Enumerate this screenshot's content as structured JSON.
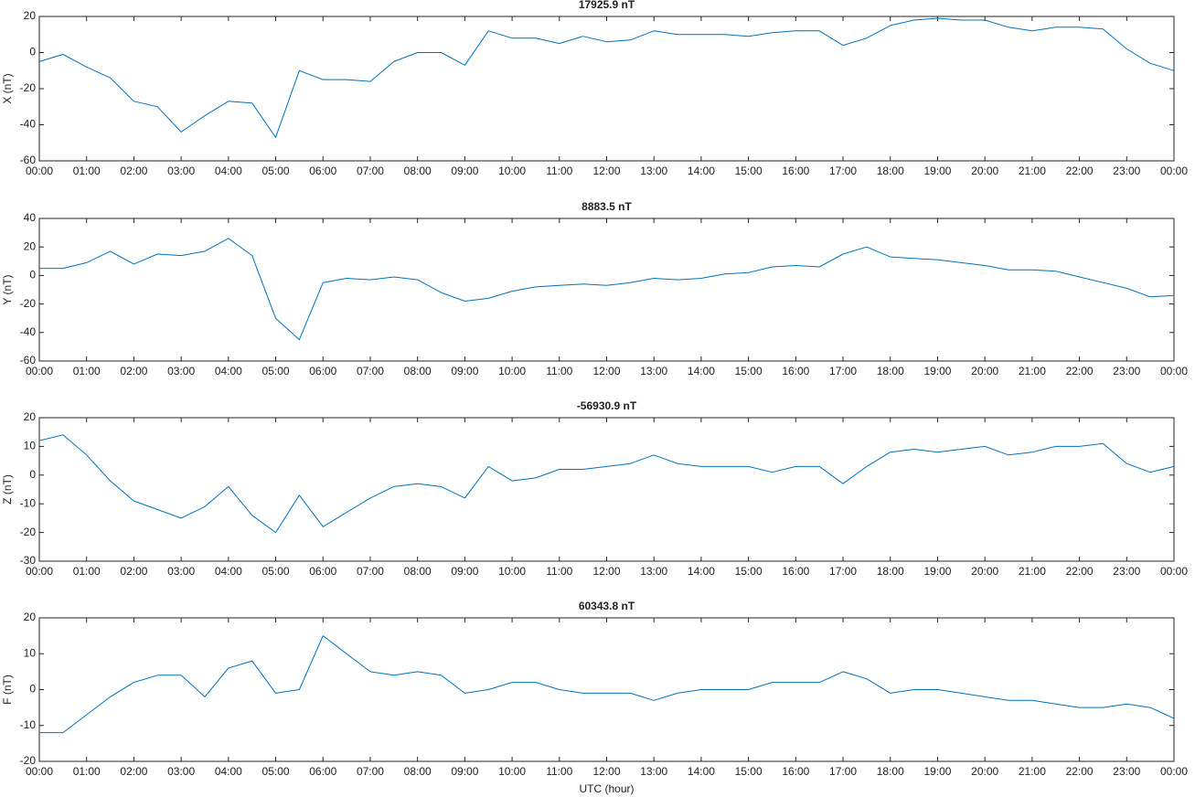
{
  "chart_data": [
    {
      "type": "line",
      "title": "17925.9 nT",
      "ylabel": "X (nT)",
      "x": [
        0,
        0.5,
        1,
        1.5,
        2,
        2.5,
        3,
        3.5,
        4,
        4.5,
        5,
        5.5,
        6,
        6.5,
        7,
        7.5,
        8,
        8.5,
        9,
        9.5,
        10,
        10.5,
        11,
        11.5,
        12,
        12.5,
        13,
        13.5,
        14,
        14.5,
        15,
        15.5,
        16,
        16.5,
        17,
        17.5,
        18,
        18.5,
        19,
        19.5,
        20,
        20.5,
        21,
        21.5,
        22,
        22.5,
        23,
        23.5,
        24
      ],
      "series": [
        {
          "color": "#0072bd",
          "values": [
            -5,
            -1,
            -8,
            -14,
            -27,
            -30,
            -44,
            -35,
            -27,
            -28,
            -47,
            -10,
            -15,
            -15,
            -16,
            -5,
            0,
            0,
            -7,
            12,
            8,
            8,
            5,
            9,
            6,
            7,
            12,
            10,
            10,
            10,
            9,
            11,
            12,
            12,
            4,
            8,
            15,
            18,
            19,
            18,
            18,
            14,
            12,
            14,
            14,
            13,
            2,
            -6,
            -10
          ]
        }
      ],
      "xlim": [
        0,
        24
      ],
      "xticks": [
        {
          "value": 0,
          "label": "00:00"
        },
        {
          "value": 1,
          "label": "01:00"
        },
        {
          "value": 2,
          "label": "02:00"
        },
        {
          "value": 3,
          "label": "03:00"
        },
        {
          "value": 4,
          "label": "04:00"
        },
        {
          "value": 5,
          "label": "05:00"
        },
        {
          "value": 6,
          "label": "06:00"
        },
        {
          "value": 7,
          "label": "07:00"
        },
        {
          "value": 8,
          "label": "08:00"
        },
        {
          "value": 9,
          "label": "09:00"
        },
        {
          "value": 10,
          "label": "10:00"
        },
        {
          "value": 11,
          "label": "11:00"
        },
        {
          "value": 12,
          "label": "12:00"
        },
        {
          "value": 13,
          "label": "13:00"
        },
        {
          "value": 14,
          "label": "14:00"
        },
        {
          "value": 15,
          "label": "15:00"
        },
        {
          "value": 16,
          "label": "16:00"
        },
        {
          "value": 17,
          "label": "17:00"
        },
        {
          "value": 18,
          "label": "18:00"
        },
        {
          "value": 19,
          "label": "19:00"
        },
        {
          "value": 20,
          "label": "20:00"
        },
        {
          "value": 21,
          "label": "21:00"
        },
        {
          "value": 22,
          "label": "22:00"
        },
        {
          "value": 23,
          "label": "23:00"
        },
        {
          "value": 24,
          "label": "00:00"
        }
      ],
      "ylim": [
        -60,
        20
      ],
      "yticks": [
        -60,
        -40,
        -20,
        0,
        20
      ]
    },
    {
      "type": "line",
      "title": "8883.5 nT",
      "ylabel": "Y (nT)",
      "x": [
        0,
        0.5,
        1,
        1.5,
        2,
        2.5,
        3,
        3.5,
        4,
        4.5,
        5,
        5.5,
        6,
        6.5,
        7,
        7.5,
        8,
        8.5,
        9,
        9.5,
        10,
        10.5,
        11,
        11.5,
        12,
        12.5,
        13,
        13.5,
        14,
        14.5,
        15,
        15.5,
        16,
        16.5,
        17,
        17.5,
        18,
        18.5,
        19,
        19.5,
        20,
        20.5,
        21,
        21.5,
        22,
        22.5,
        23,
        23.5,
        24
      ],
      "series": [
        {
          "color": "#0072bd",
          "values": [
            5,
            5,
            9,
            17,
            8,
            15,
            14,
            17,
            26,
            14,
            -30,
            -45,
            -5,
            -2,
            -3,
            -1,
            -3,
            -12,
            -18,
            -16,
            -11,
            -8,
            -7,
            -6,
            -7,
            -5,
            -2,
            -3,
            -2,
            1,
            2,
            6,
            7,
            6,
            15,
            20,
            13,
            12,
            11,
            9,
            7,
            4,
            4,
            3,
            -1,
            -5,
            -9,
            -15,
            -14
          ]
        }
      ],
      "xlim": [
        0,
        24
      ],
      "xticks": [
        {
          "value": 0,
          "label": "00:00"
        },
        {
          "value": 1,
          "label": "01:00"
        },
        {
          "value": 2,
          "label": "02:00"
        },
        {
          "value": 3,
          "label": "03:00"
        },
        {
          "value": 4,
          "label": "04:00"
        },
        {
          "value": 5,
          "label": "05:00"
        },
        {
          "value": 6,
          "label": "06:00"
        },
        {
          "value": 7,
          "label": "07:00"
        },
        {
          "value": 8,
          "label": "08:00"
        },
        {
          "value": 9,
          "label": "09:00"
        },
        {
          "value": 10,
          "label": "10:00"
        },
        {
          "value": 11,
          "label": "11:00"
        },
        {
          "value": 12,
          "label": "12:00"
        },
        {
          "value": 13,
          "label": "13:00"
        },
        {
          "value": 14,
          "label": "14:00"
        },
        {
          "value": 15,
          "label": "15:00"
        },
        {
          "value": 16,
          "label": "16:00"
        },
        {
          "value": 17,
          "label": "17:00"
        },
        {
          "value": 18,
          "label": "18:00"
        },
        {
          "value": 19,
          "label": "19:00"
        },
        {
          "value": 20,
          "label": "20:00"
        },
        {
          "value": 21,
          "label": "21:00"
        },
        {
          "value": 22,
          "label": "22:00"
        },
        {
          "value": 23,
          "label": "23:00"
        },
        {
          "value": 24,
          "label": "00:00"
        }
      ],
      "ylim": [
        -60,
        40
      ],
      "yticks": [
        -60,
        -40,
        -20,
        0,
        20,
        40
      ]
    },
    {
      "type": "line",
      "title": "-56930.9 nT",
      "ylabel": "Z (nT)",
      "x": [
        0,
        0.5,
        1,
        1.5,
        2,
        2.5,
        3,
        3.5,
        4,
        4.5,
        5,
        5.5,
        6,
        6.5,
        7,
        7.5,
        8,
        8.5,
        9,
        9.5,
        10,
        10.5,
        11,
        11.5,
        12,
        12.5,
        13,
        13.5,
        14,
        14.5,
        15,
        15.5,
        16,
        16.5,
        17,
        17.5,
        18,
        18.5,
        19,
        19.5,
        20,
        20.5,
        21,
        21.5,
        22,
        22.5,
        23,
        23.5,
        24
      ],
      "series": [
        {
          "color": "#0072bd",
          "values": [
            12,
            14,
            7,
            -2,
            -9,
            -12,
            -15,
            -11,
            -4,
            -14,
            -20,
            -7,
            -18,
            -13,
            -8,
            -4,
            -3,
            -4,
            -8,
            3,
            -2,
            -1,
            2,
            2,
            3,
            4,
            7,
            4,
            3,
            3,
            3,
            1,
            3,
            3,
            -3,
            3,
            8,
            9,
            8,
            9,
            10,
            7,
            8,
            10,
            10,
            11,
            4,
            1,
            3
          ]
        }
      ],
      "xlim": [
        0,
        24
      ],
      "xticks": [
        {
          "value": 0,
          "label": "00:00"
        },
        {
          "value": 1,
          "label": "01:00"
        },
        {
          "value": 2,
          "label": "02:00"
        },
        {
          "value": 3,
          "label": "03:00"
        },
        {
          "value": 4,
          "label": "04:00"
        },
        {
          "value": 5,
          "label": "05:00"
        },
        {
          "value": 6,
          "label": "06:00"
        },
        {
          "value": 7,
          "label": "07:00"
        },
        {
          "value": 8,
          "label": "08:00"
        },
        {
          "value": 9,
          "label": "09:00"
        },
        {
          "value": 10,
          "label": "10:00"
        },
        {
          "value": 11,
          "label": "11:00"
        },
        {
          "value": 12,
          "label": "12:00"
        },
        {
          "value": 13,
          "label": "13:00"
        },
        {
          "value": 14,
          "label": "14:00"
        },
        {
          "value": 15,
          "label": "15:00"
        },
        {
          "value": 16,
          "label": "16:00"
        },
        {
          "value": 17,
          "label": "17:00"
        },
        {
          "value": 18,
          "label": "18:00"
        },
        {
          "value": 19,
          "label": "19:00"
        },
        {
          "value": 20,
          "label": "20:00"
        },
        {
          "value": 21,
          "label": "21:00"
        },
        {
          "value": 22,
          "label": "22:00"
        },
        {
          "value": 23,
          "label": "23:00"
        },
        {
          "value": 24,
          "label": "00:00"
        }
      ],
      "ylim": [
        -30,
        20
      ],
      "yticks": [
        -30,
        -20,
        -10,
        0,
        10,
        20
      ]
    },
    {
      "type": "line",
      "title": "60343.8 nT",
      "ylabel": "F (nT)",
      "xlabel": "UTC (hour)",
      "x": [
        0,
        0.5,
        1,
        1.5,
        2,
        2.5,
        3,
        3.5,
        4,
        4.5,
        5,
        5.5,
        6,
        6.5,
        7,
        7.5,
        8,
        8.5,
        9,
        9.5,
        10,
        10.5,
        11,
        11.5,
        12,
        12.5,
        13,
        13.5,
        14,
        14.5,
        15,
        15.5,
        16,
        16.5,
        17,
        17.5,
        18,
        18.5,
        19,
        19.5,
        20,
        20.5,
        21,
        21.5,
        22,
        22.5,
        23,
        23.5,
        24
      ],
      "series": [
        {
          "color": "#0072bd",
          "values": [
            -12,
            -12,
            -7,
            -2,
            2,
            4,
            4,
            -2,
            6,
            8,
            -1,
            0,
            15,
            10,
            5,
            4,
            5,
            4,
            -1,
            0,
            2,
            2,
            0,
            -1,
            -1,
            -1,
            -3,
            -1,
            0,
            0,
            0,
            2,
            2,
            2,
            5,
            3,
            -1,
            0,
            0,
            -1,
            -2,
            -3,
            -3,
            -4,
            -5,
            -5,
            -4,
            -5,
            -8
          ]
        }
      ],
      "xlim": [
        0,
        24
      ],
      "xticks": [
        {
          "value": 0,
          "label": "00:00"
        },
        {
          "value": 1,
          "label": "01:00"
        },
        {
          "value": 2,
          "label": "02:00"
        },
        {
          "value": 3,
          "label": "03:00"
        },
        {
          "value": 4,
          "label": "04:00"
        },
        {
          "value": 5,
          "label": "05:00"
        },
        {
          "value": 6,
          "label": "06:00"
        },
        {
          "value": 7,
          "label": "07:00"
        },
        {
          "value": 8,
          "label": "08:00"
        },
        {
          "value": 9,
          "label": "09:00"
        },
        {
          "value": 10,
          "label": "10:00"
        },
        {
          "value": 11,
          "label": "11:00"
        },
        {
          "value": 12,
          "label": "12:00"
        },
        {
          "value": 13,
          "label": "13:00"
        },
        {
          "value": 14,
          "label": "14:00"
        },
        {
          "value": 15,
          "label": "15:00"
        },
        {
          "value": 16,
          "label": "16:00"
        },
        {
          "value": 17,
          "label": "17:00"
        },
        {
          "value": 18,
          "label": "18:00"
        },
        {
          "value": 19,
          "label": "19:00"
        },
        {
          "value": 20,
          "label": "20:00"
        },
        {
          "value": 21,
          "label": "21:00"
        },
        {
          "value": 22,
          "label": "22:00"
        },
        {
          "value": 23,
          "label": "23:00"
        },
        {
          "value": 24,
          "label": "00:00"
        }
      ],
      "ylim": [
        -20,
        20
      ],
      "yticks": [
        -20,
        -10,
        0,
        10,
        20
      ]
    }
  ]
}
